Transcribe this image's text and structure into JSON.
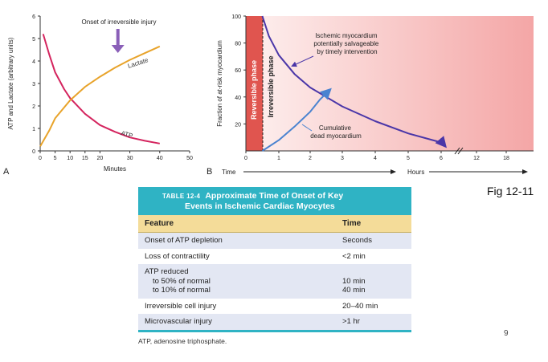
{
  "chart_data": [
    {
      "panel": "A",
      "type": "line",
      "title": "",
      "xlabel": "Minutes",
      "ylabel": "ATP and Lactate (arbitrary units)",
      "xlim": [
        0,
        50
      ],
      "ylim": [
        0,
        6
      ],
      "x_ticks": [
        0,
        5,
        10,
        15,
        20,
        30,
        40,
        50
      ],
      "y_ticks": [
        0,
        1,
        2,
        3,
        4,
        5,
        6
      ],
      "annotation": "Onset of irreversible injury",
      "annotation_x": 26,
      "series": [
        {
          "name": "ATP",
          "color": "#d4245e",
          "x": [
            1,
            3,
            5,
            8,
            10,
            15,
            20,
            25,
            30,
            35,
            40
          ],
          "y": [
            5.2,
            4.3,
            3.5,
            2.75,
            2.35,
            1.65,
            1.15,
            0.85,
            0.6,
            0.45,
            0.33
          ]
        },
        {
          "name": "Lactate",
          "color": "#e8a32a",
          "x": [
            0,
            3,
            5,
            10,
            15,
            20,
            25,
            30,
            35,
            40
          ],
          "y": [
            0.2,
            0.9,
            1.45,
            2.25,
            2.85,
            3.3,
            3.7,
            4.05,
            4.35,
            4.65
          ]
        }
      ]
    },
    {
      "panel": "B",
      "type": "line",
      "xlabel": "Hours",
      "x_start_label": "Time",
      "ylabel": "Fraction of at-risk myocardium",
      "ylim": [
        0,
        100
      ],
      "y_ticks": [
        20,
        40,
        60,
        80,
        100
      ],
      "x_ticks": [
        "0",
        "1",
        "2",
        "3",
        "4",
        "5",
        "6",
        "12",
        "18"
      ],
      "regions": [
        "Reversible phase",
        "Irreversible phase"
      ],
      "annotations": [
        {
          "text": "Ischemic myocardium potentially salvageable by timely intervention"
        },
        {
          "text": "Cumulative dead myocardium"
        }
      ],
      "series": [
        {
          "name": "Ischemic myocardium potentially salvageable",
          "color": "#4a36a8",
          "x": [
            0.5,
            0.7,
            1,
            1.5,
            2,
            2.5,
            3,
            4,
            5,
            6.2,
            6.6
          ],
          "y": [
            100,
            85,
            71,
            57,
            47,
            40,
            33,
            22,
            13,
            6,
            4
          ]
        },
        {
          "name": "Cumulative dead myocardium",
          "color": "#4a83d0",
          "x": [
            0.5,
            1,
            1.5,
            2,
            2.3,
            2.6
          ],
          "y": [
            0,
            8,
            18,
            29,
            38,
            45
          ]
        }
      ]
    }
  ],
  "table": {
    "tag": "TABLE 12-4",
    "title_line1": "Approximate Time of Onset of Key",
    "title_line2": "Events in Ischemic Cardiac Myocytes",
    "header_feature": "Feature",
    "header_time": "Time",
    "rows": [
      {
        "feature": "Onset of ATP depletion",
        "time": "Seconds"
      },
      {
        "feature": "Loss of contractility",
        "time": "<2 min"
      },
      {
        "feature": "ATP reduced",
        "sub1": "to 50% of normal",
        "sub2": "to 10% of normal",
        "time1": "10 min",
        "time2": "40 min"
      },
      {
        "feature": "Irreversible cell injury",
        "time": "20–40 min"
      },
      {
        "feature": "Microvascular injury",
        "time": ">1 hr"
      }
    ],
    "footnote": "ATP, adenosine triphosphate."
  },
  "figure_caption": "Fig 12-11",
  "slide_number": "9"
}
